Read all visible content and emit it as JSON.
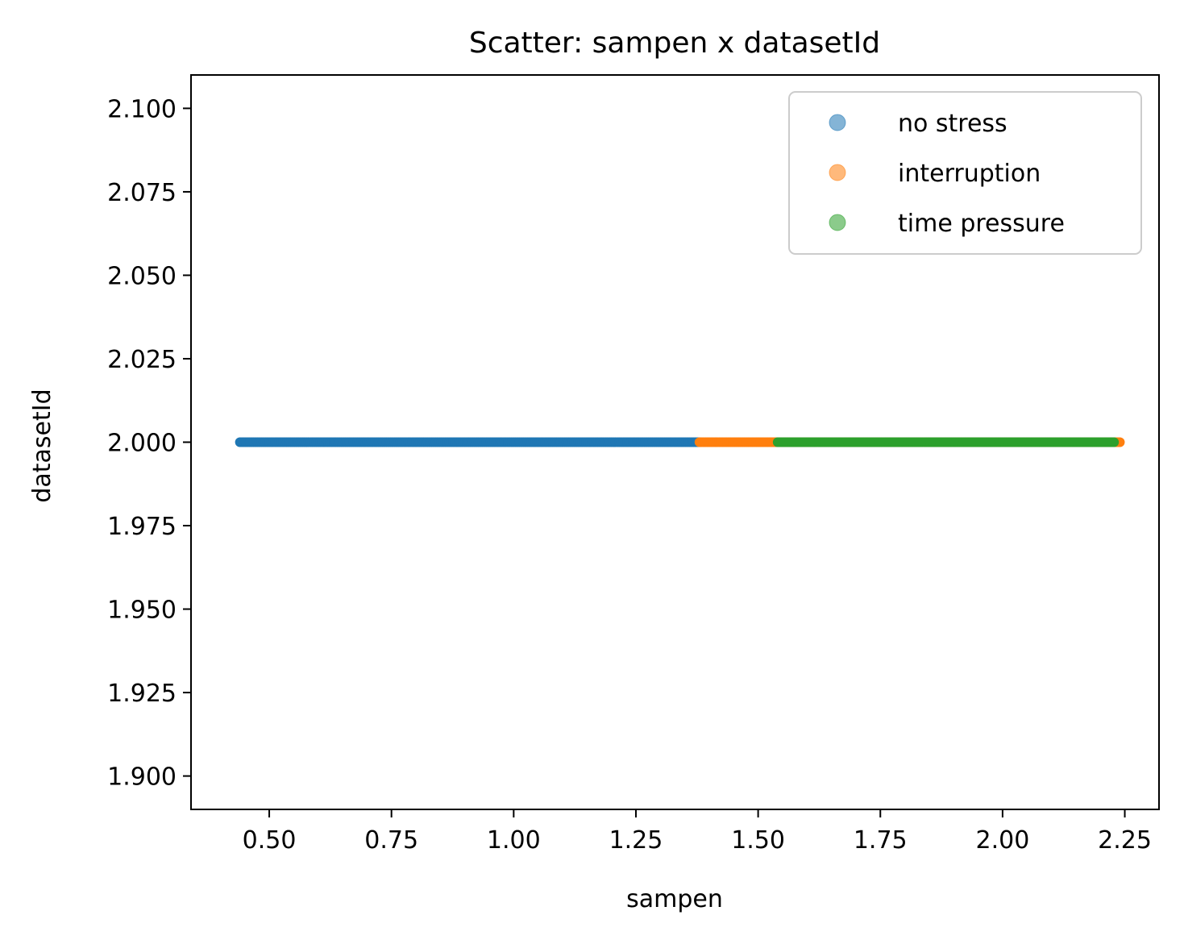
{
  "chart_data": {
    "type": "scatter",
    "title": "Scatter: sampen x datasetId",
    "xlabel": "sampen",
    "ylabel": "datasetId",
    "xlim": [
      0.34,
      2.32
    ],
    "ylim": [
      1.89,
      2.11
    ],
    "xticks": [
      "0.50",
      "0.75",
      "1.00",
      "1.25",
      "1.50",
      "1.75",
      "2.00",
      "2.25"
    ],
    "yticks": [
      "2.100",
      "2.075",
      "2.050",
      "2.025",
      "2.000",
      "1.975",
      "1.950",
      "1.925",
      "1.900"
    ],
    "grid": false,
    "legend_position": "top-right",
    "series": [
      {
        "name": "no stress",
        "color": "#1f77b4",
        "x_min": 0.44,
        "x_max": 1.38,
        "y": 2.0
      },
      {
        "name": "interruption",
        "color": "#ff7f0e",
        "x_min": 1.38,
        "x_max": 2.24,
        "y": 2.0
      },
      {
        "name": "time pressure",
        "color": "#2ca02c",
        "x_min": 1.54,
        "x_max": 2.23,
        "y": 2.0
      }
    ]
  }
}
